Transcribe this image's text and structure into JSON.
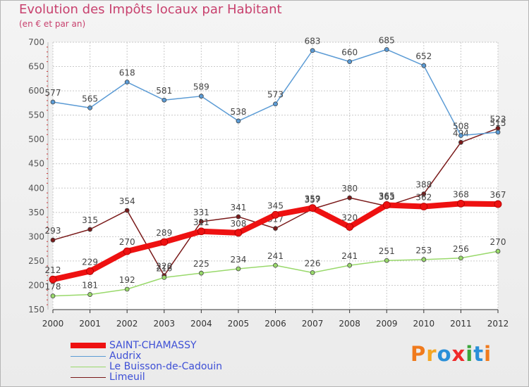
{
  "title": "Evolution des Impôts locaux par Habitant",
  "subtitle": "(en € et par an)",
  "logo": {
    "text": "Proxiti",
    "colors": [
      "#f07a1c",
      "#f5a623",
      "#2a8fd8",
      "#f02a2a",
      "#3aa63a",
      "#2a8fd8",
      "#f07a1c"
    ]
  },
  "chart_data": {
    "type": "line",
    "x": [
      "2000",
      "2001",
      "2002",
      "2003",
      "2004",
      "2005",
      "2006",
      "2007",
      "2008",
      "2009",
      "2010",
      "2011",
      "2012"
    ],
    "ylim": [
      150,
      700
    ],
    "yticks": [
      "150",
      "200",
      "250",
      "300",
      "350",
      "400",
      "450",
      "500",
      "550",
      "600",
      "650",
      "700"
    ],
    "grid": true,
    "legend_position": "bottom-left",
    "series": [
      {
        "name": "Limeuil",
        "color": "#7a1a1a",
        "values": [
          293,
          315,
          354,
          220,
          331,
          341,
          317,
          357,
          380,
          363,
          388,
          494,
          523
        ],
        "labels": [
          "293",
          "315",
          "354",
          "220",
          "331",
          "341",
          "317",
          "357",
          "380",
          "363",
          "388",
          "494",
          "523"
        ]
      },
      {
        "name": "Audrix",
        "color": "#5b9bd5",
        "values": [
          577,
          565,
          618,
          581,
          589,
          538,
          573,
          683,
          660,
          685,
          652,
          508,
          515
        ],
        "labels": [
          "577",
          "565",
          "618",
          "581",
          "589",
          "538",
          "573",
          "683",
          "660",
          "685",
          "652",
          "508",
          "515"
        ]
      },
      {
        "name": "Le Buisson-de-Cadouin",
        "color": "#99d96b",
        "values": [
          178,
          181,
          192,
          216,
          225,
          234,
          241,
          226,
          241,
          251,
          253,
          256,
          270
        ],
        "labels": [
          "178",
          "181",
          "192",
          "216",
          "225",
          "234",
          "241",
          "226",
          "241",
          "251",
          "253",
          "256",
          "270"
        ]
      },
      {
        "name": "SAINT-CHAMASSY",
        "color": "#ee1111",
        "values": [
          212,
          229,
          270,
          289,
          311,
          308,
          345,
          359,
          320,
          365,
          362,
          368,
          367
        ],
        "labels": [
          "212",
          "229",
          "270",
          "289",
          "311",
          "308",
          "345",
          "359",
          "320",
          "365",
          "362",
          "368",
          "367"
        ]
      }
    ],
    "legend_order": [
      "SAINT-CHAMASSY",
      "Audrix",
      "Le Buisson-de-Cadouin",
      "Limeuil"
    ]
  }
}
